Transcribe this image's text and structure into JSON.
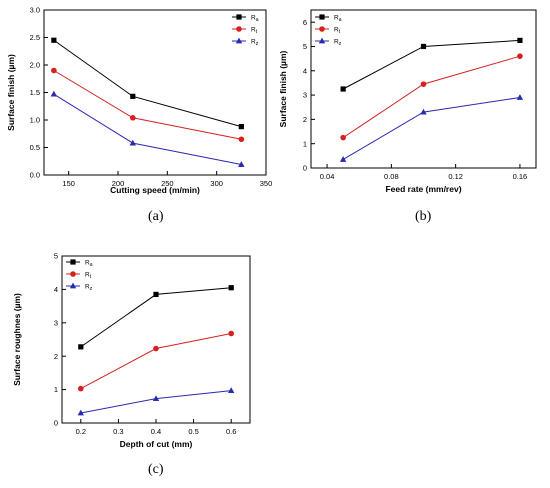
{
  "chart_data": [
    {
      "type": "line",
      "panel_label": "(a)",
      "title": "",
      "xlabel": "Cutting speed (m/min)",
      "ylabel": "Surface finish (µm)",
      "xlim": [
        125,
        350
      ],
      "ylim": [
        0.0,
        3.0
      ],
      "xticks": [
        150,
        200,
        250,
        300,
        350
      ],
      "xtick_labels": [
        "150",
        "200",
        "250",
        "300",
        "350"
      ],
      "yticks": [
        0.0,
        0.5,
        1.0,
        1.5,
        2.0,
        2.5,
        3.0
      ],
      "ytick_labels": [
        "0.0",
        "0.5",
        "1.0",
        "1.5",
        "2.0",
        "2.5",
        "3.0"
      ],
      "legend_position": "top-right",
      "grid": false,
      "x": [
        135,
        215,
        325
      ],
      "series": [
        {
          "name": "Ra",
          "sub": "a",
          "color": "#000000",
          "marker": "square",
          "values": [
            2.45,
            1.43,
            0.88
          ]
        },
        {
          "name": "Rt",
          "sub": "t",
          "color": "#d62020",
          "marker": "circle",
          "values": [
            1.9,
            1.04,
            0.65
          ]
        },
        {
          "name": "Rz",
          "sub": "z",
          "color": "#2a2ab0",
          "marker": "triangle",
          "values": [
            1.47,
            0.58,
            0.19
          ]
        }
      ]
    },
    {
      "type": "line",
      "panel_label": "(b)",
      "title": "",
      "xlabel": "Feed rate (mm/rev)",
      "ylabel": "Surface finish (µm)",
      "xlim": [
        0.03,
        0.17
      ],
      "ylim": [
        0,
        6.5
      ],
      "xticks": [
        0.04,
        0.08,
        0.12,
        0.16
      ],
      "xtick_labels": [
        "0.04",
        "0.08",
        "0.12",
        "0.16"
      ],
      "yticks": [
        0,
        1,
        2,
        3,
        4,
        5,
        6
      ],
      "ytick_labels": [
        "0",
        "1",
        "2",
        "3",
        "4",
        "5",
        "6"
      ],
      "legend_position": "top-left",
      "grid": false,
      "x": [
        0.05,
        0.1,
        0.16
      ],
      "series": [
        {
          "name": "Ra",
          "sub": "a",
          "color": "#000000",
          "marker": "square",
          "values": [
            3.25,
            5.0,
            5.25
          ]
        },
        {
          "name": "Rt",
          "sub": "t",
          "color": "#d62020",
          "marker": "circle",
          "values": [
            1.25,
            3.45,
            4.6
          ]
        },
        {
          "name": "Rz",
          "sub": "z",
          "color": "#2a2ab0",
          "marker": "triangle",
          "values": [
            0.35,
            2.3,
            2.9
          ]
        }
      ]
    },
    {
      "type": "line",
      "panel_label": "(c)",
      "title": "",
      "xlabel": "Depth of cut (mm)",
      "ylabel": "Surface roughnes (µm)",
      "xlim": [
        0.15,
        0.65
      ],
      "ylim": [
        0,
        5
      ],
      "xticks": [
        0.2,
        0.3,
        0.4,
        0.5,
        0.6
      ],
      "xtick_labels": [
        "0.2",
        "0.3",
        "0.4",
        "0.5",
        "0.6"
      ],
      "yticks": [
        0,
        1,
        2,
        3,
        4,
        5
      ],
      "ytick_labels": [
        "0",
        "1",
        "2",
        "3",
        "4",
        "5"
      ],
      "legend_position": "top-left",
      "grid": false,
      "x": [
        0.2,
        0.4,
        0.6
      ],
      "series": [
        {
          "name": "Ra",
          "sub": "a",
          "color": "#000000",
          "marker": "square",
          "values": [
            2.28,
            3.85,
            4.05
          ]
        },
        {
          "name": "Rt",
          "sub": "t",
          "color": "#d62020",
          "marker": "circle",
          "values": [
            1.03,
            2.23,
            2.68
          ]
        },
        {
          "name": "Rz",
          "sub": "z",
          "color": "#2a2ab0",
          "marker": "triangle",
          "values": [
            0.3,
            0.73,
            0.97
          ]
        }
      ]
    }
  ]
}
